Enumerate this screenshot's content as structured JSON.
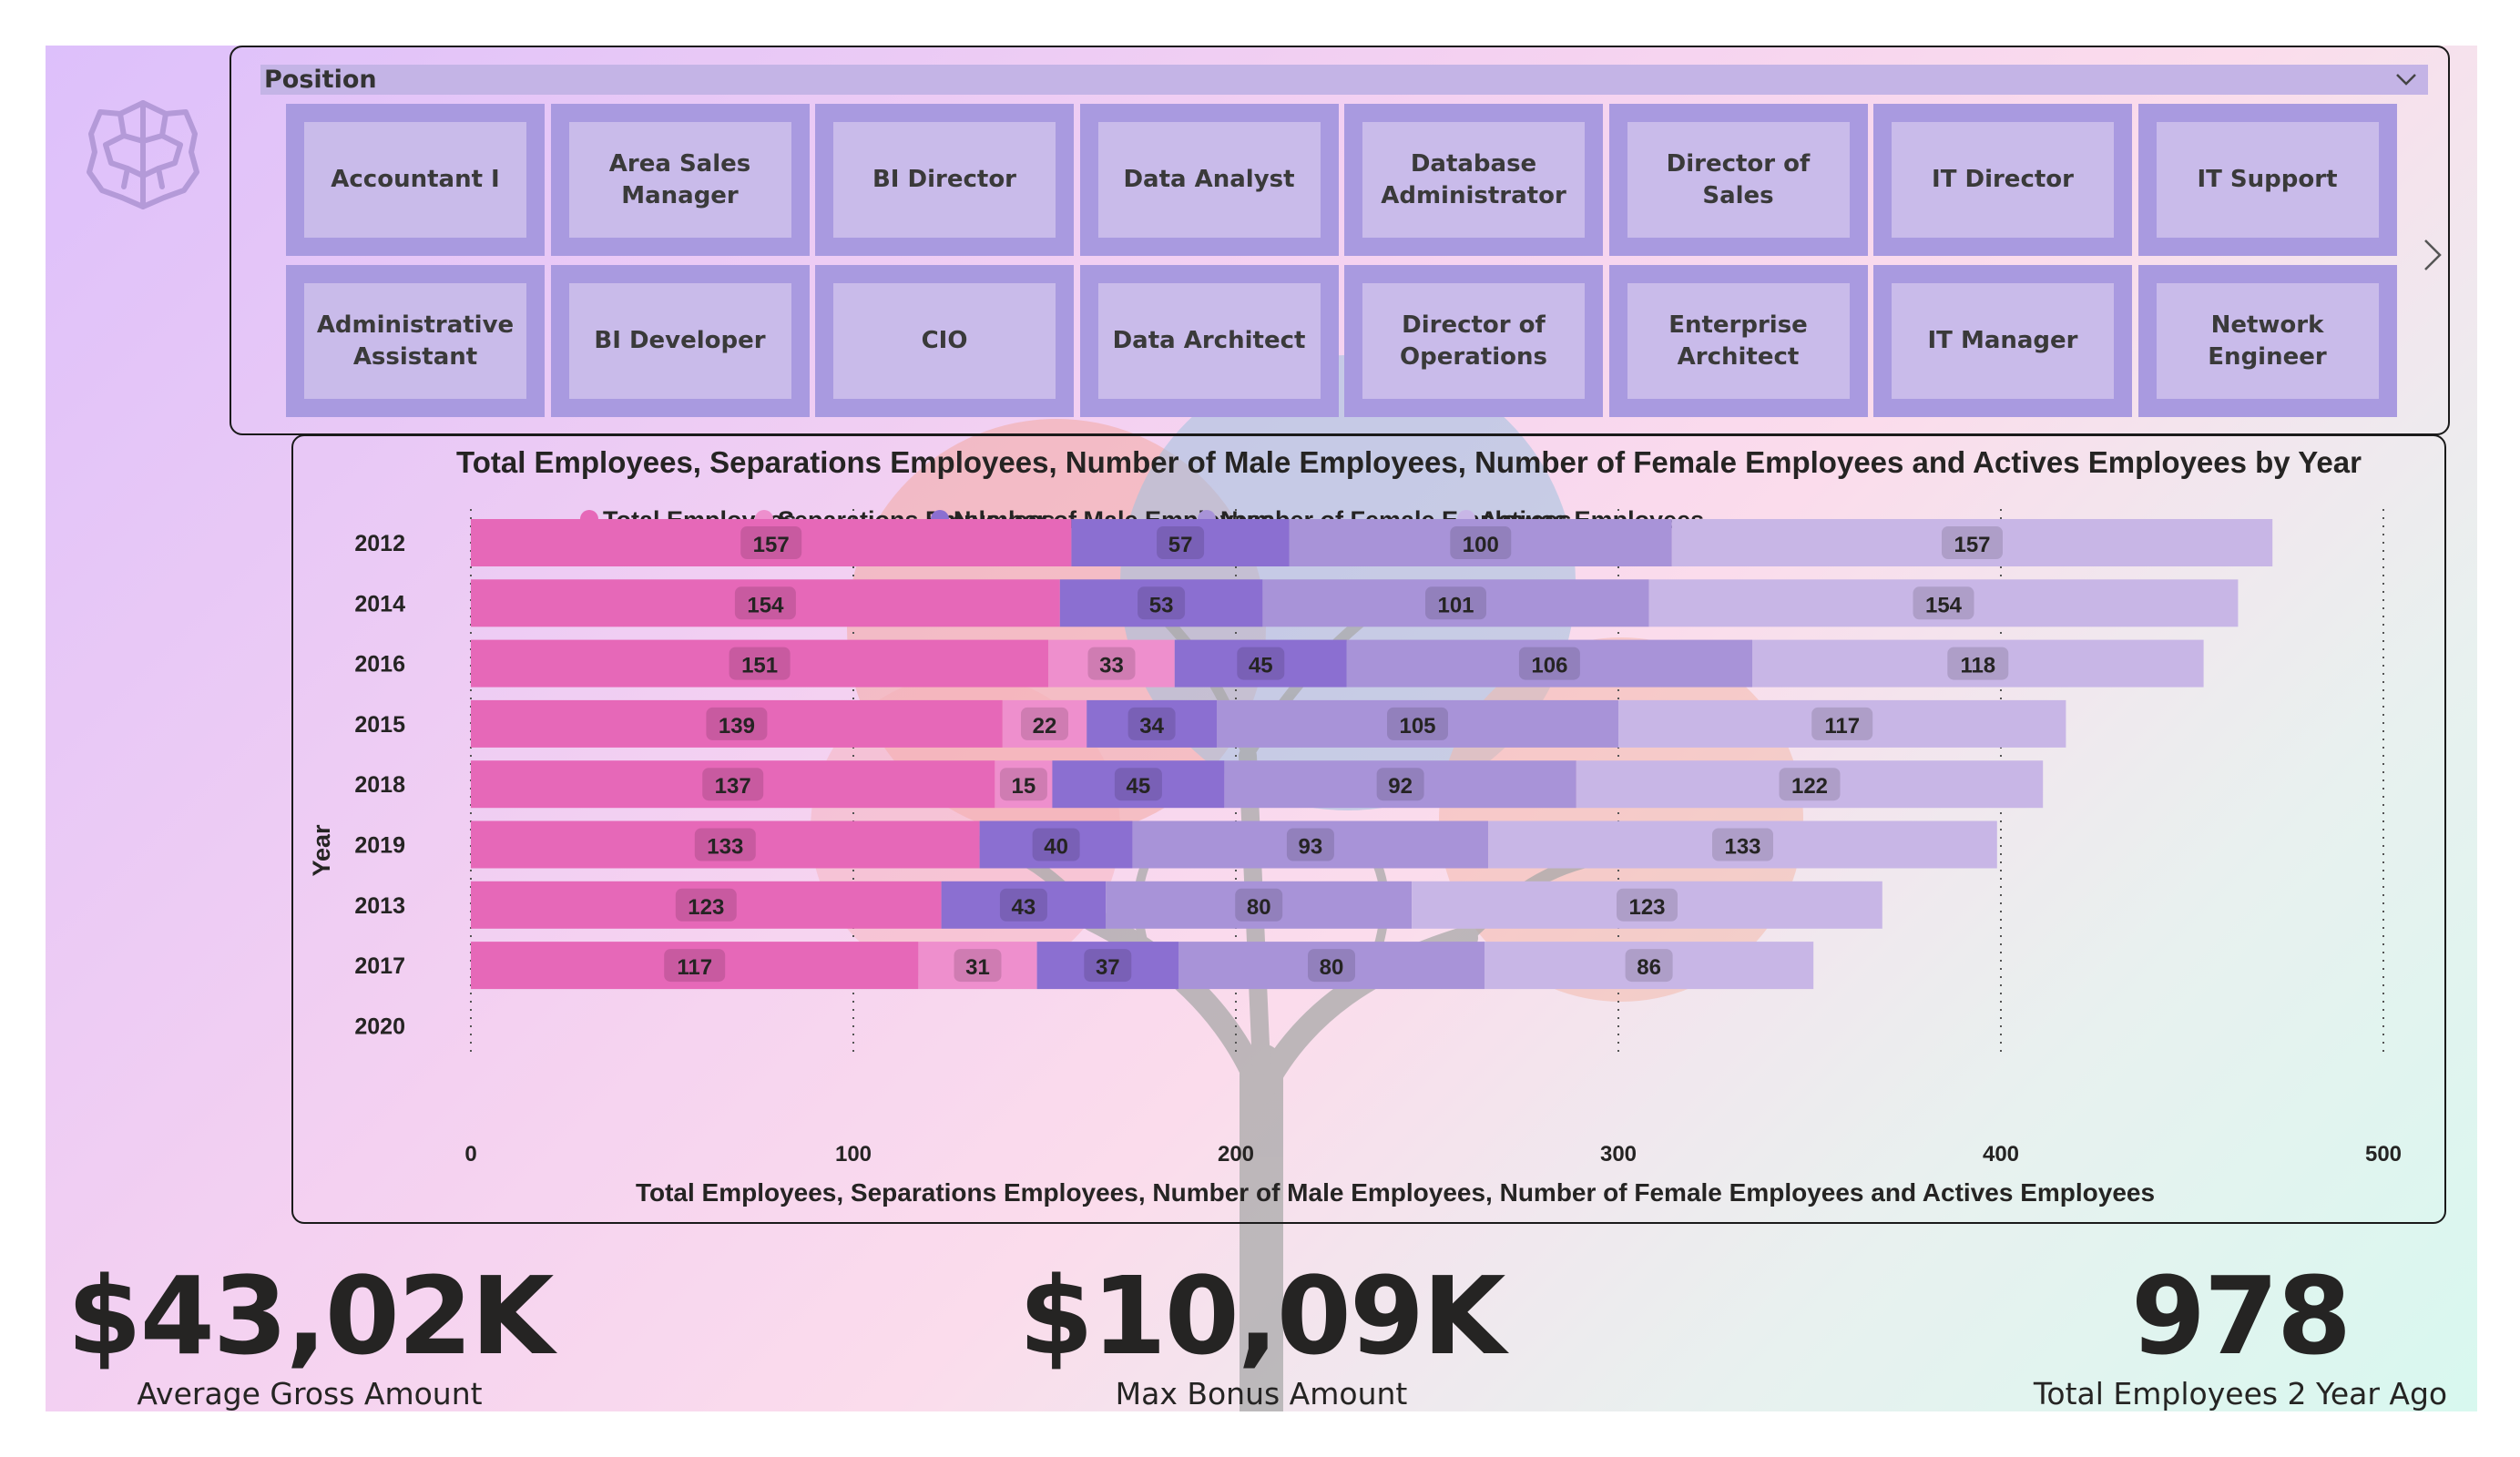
{
  "slicer": {
    "title": "Position",
    "positions": [
      "Accountant I",
      "Area Sales Manager",
      "BI Director",
      "Data Analyst",
      "Database Administrator",
      "Director of Sales",
      "IT Director",
      "IT Support",
      "Administrative Assistant",
      "BI Developer",
      "CIO",
      "Data Architect",
      "Director of Operations",
      "Enterprise Architect",
      "IT Manager",
      "Network Engineer"
    ]
  },
  "chart_data": {
    "type": "bar",
    "orientation": "horizontal",
    "stacked": true,
    "title": "Total Employees, Separations Employees, Number of Male Employees, Number of Female Employees and Actives Employees by Year",
    "xlabel": "Total Employees, Separations Employees, Number of Male Employees, Number of Female Employees and Actives Employees",
    "ylabel": "Year",
    "xlim": [
      0,
      500
    ],
    "xticks": [
      0,
      100,
      200,
      300,
      400,
      500
    ],
    "legend_position": "top",
    "grid": "vertical-dotted",
    "categories": [
      "2012",
      "2014",
      "2016",
      "2015",
      "2018",
      "2019",
      "2013",
      "2017",
      "2020"
    ],
    "series": [
      {
        "name": "Total Employees",
        "color": "#e668b8",
        "values": [
          157,
          154,
          151,
          139,
          137,
          133,
          123,
          117,
          null
        ]
      },
      {
        "name": "Separations Employees",
        "color": "#ee8fcd",
        "values": [
          null,
          null,
          33,
          22,
          15,
          null,
          null,
          31,
          null
        ]
      },
      {
        "name": "Number of Male Employees",
        "color": "#8b6fd1",
        "values": [
          57,
          53,
          45,
          34,
          45,
          40,
          43,
          37,
          null
        ]
      },
      {
        "name": "Number of Female Employees",
        "color": "#a893d8",
        "values": [
          100,
          101,
          106,
          105,
          92,
          93,
          80,
          80,
          null
        ]
      },
      {
        "name": "Actives Employees",
        "color": "#c8b6e6",
        "values": [
          157,
          154,
          118,
          117,
          122,
          133,
          123,
          86,
          null
        ]
      }
    ]
  },
  "kpis": [
    {
      "value": "$43,02K",
      "label": "Average Gross Amount"
    },
    {
      "value": "$10,09K",
      "label": "Max Bonus Amount"
    },
    {
      "value": "978",
      "label": "Total Employees 2 Year Ago"
    }
  ]
}
